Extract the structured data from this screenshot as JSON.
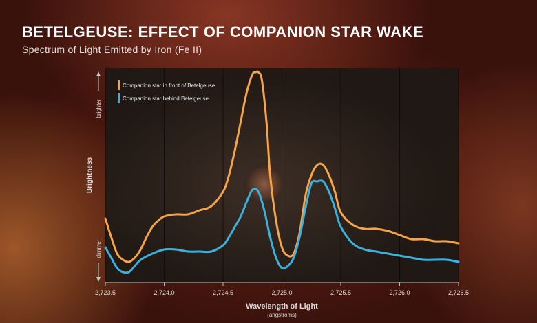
{
  "page": {
    "title": "BETELGEUSE: EFFECT OF COMPANION STAR WAKE",
    "subtitle": "Spectrum of Light Emitted by Iron (Fe II)"
  },
  "chart_data": {
    "type": "line",
    "xlabel": "Wavelength of Light",
    "xunit": "(angstroms)",
    "ylabel": "Brightness",
    "y_top_label": "brighter",
    "y_bottom_label": "dimmer",
    "xlim": [
      2723.5,
      2726.5
    ],
    "ylim": [
      0,
      1
    ],
    "x_ticks": [
      2723.5,
      2724.0,
      2724.5,
      2725.0,
      2725.5,
      2726.0,
      2726.5
    ],
    "x_tick_labels": [
      "2,723.5",
      "2,724.0",
      "2,724.5",
      "2,725.0",
      "2,725.5",
      "2,726.0",
      "2,726.5"
    ],
    "grid": "vertical",
    "legend_position": "top-left",
    "series": [
      {
        "name": "Companion star in front of Betelgeuse",
        "color": "#f5a44a",
        "x": [
          2723.5,
          2723.55,
          2723.6,
          2723.65,
          2723.7,
          2723.75,
          2723.8,
          2723.85,
          2723.9,
          2723.95,
          2724.0,
          2724.1,
          2724.2,
          2724.3,
          2724.4,
          2724.5,
          2724.55,
          2724.6,
          2724.65,
          2724.7,
          2724.75,
          2724.78,
          2724.8,
          2724.83,
          2724.87,
          2724.9,
          2724.95,
          2725.0,
          2725.05,
          2725.1,
          2725.15,
          2725.2,
          2725.25,
          2725.3,
          2725.35,
          2725.4,
          2725.45,
          2725.5,
          2725.6,
          2725.7,
          2725.8,
          2725.9,
          2726.0,
          2726.1,
          2726.2,
          2726.3,
          2726.4,
          2726.5
        ],
        "y": [
          0.29,
          0.2,
          0.12,
          0.09,
          0.08,
          0.1,
          0.14,
          0.2,
          0.25,
          0.28,
          0.3,
          0.31,
          0.31,
          0.33,
          0.35,
          0.42,
          0.5,
          0.62,
          0.76,
          0.9,
          0.99,
          1.0,
          1.0,
          0.96,
          0.75,
          0.5,
          0.28,
          0.15,
          0.11,
          0.12,
          0.22,
          0.4,
          0.5,
          0.55,
          0.55,
          0.5,
          0.42,
          0.32,
          0.26,
          0.24,
          0.24,
          0.23,
          0.21,
          0.19,
          0.19,
          0.18,
          0.18,
          0.17
        ]
      },
      {
        "name": "Companion star behind Betelgeuse",
        "color": "#3bb2de",
        "x": [
          2723.5,
          2723.55,
          2723.6,
          2723.65,
          2723.7,
          2723.75,
          2723.8,
          2723.9,
          2724.0,
          2724.1,
          2724.2,
          2724.3,
          2724.4,
          2724.5,
          2724.55,
          2724.6,
          2724.65,
          2724.7,
          2724.75,
          2724.8,
          2724.85,
          2724.9,
          2724.95,
          2725.0,
          2725.05,
          2725.1,
          2725.15,
          2725.2,
          2725.25,
          2725.3,
          2725.35,
          2725.4,
          2725.45,
          2725.5,
          2725.6,
          2725.7,
          2725.8,
          2725.9,
          2726.0,
          2726.1,
          2726.2,
          2726.3,
          2726.4,
          2726.5
        ],
        "y": [
          0.15,
          0.1,
          0.05,
          0.03,
          0.03,
          0.06,
          0.09,
          0.12,
          0.14,
          0.14,
          0.13,
          0.13,
          0.13,
          0.16,
          0.2,
          0.25,
          0.3,
          0.37,
          0.43,
          0.42,
          0.33,
          0.2,
          0.1,
          0.05,
          0.06,
          0.1,
          0.2,
          0.34,
          0.46,
          0.47,
          0.47,
          0.42,
          0.34,
          0.25,
          0.17,
          0.14,
          0.13,
          0.12,
          0.11,
          0.1,
          0.09,
          0.09,
          0.09,
          0.08
        ]
      }
    ]
  }
}
